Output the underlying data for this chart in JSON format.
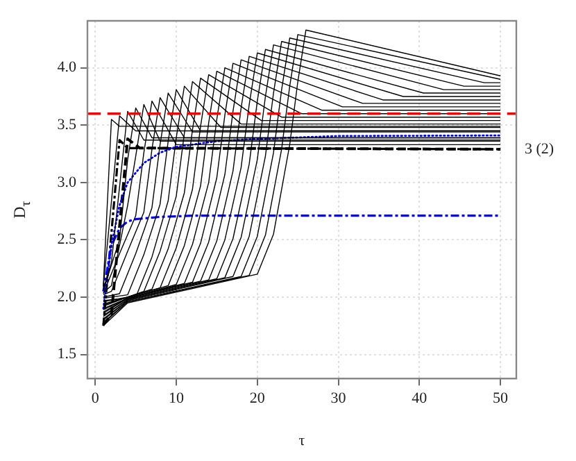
{
  "chart_data": {
    "type": "line",
    "xlabel": "τ",
    "ylabel": "D$_{τ}$",
    "xlim": [
      -0.96,
      51.96
    ],
    "ylim": [
      1.29,
      4.41
    ],
    "xticks": [
      0,
      10,
      20,
      30,
      40,
      50
    ],
    "yticks": [
      1.5,
      {
        "value": 2,
        "label": "2.0"
      },
      2.5,
      {
        "value": 3,
        "label": "3.0"
      },
      3.5,
      {
        "value": 4,
        "label": "4.0"
      }
    ],
    "grid": true,
    "marker": "none",
    "tick_labels": true,
    "annotations": [
      "3 (2)"
    ],
    "ref_lines": [
      {
        "axis": "y",
        "value": 3.6,
        "color": "#ff0000",
        "line_style": "dashed"
      }
    ],
    "series": [
      {
        "color": "#000000",
        "line_style": "solid",
        "x": [
          1,
          2,
          3,
          50
        ],
        "values": [
          2.1,
          3.55,
          3.49,
          3.49
        ]
      },
      {
        "color": "#000000",
        "line_style": "solid",
        "x": [
          1,
          3,
          5,
          50
        ],
        "values": [
          2.09,
          3.58,
          3.45,
          3.45
        ]
      },
      {
        "color": "#000000",
        "line_style": "solid",
        "x": [
          1,
          2,
          4,
          6,
          50
        ],
        "values": [
          2.07,
          2.3,
          3.62,
          3.37,
          3.37
        ]
      },
      {
        "color": "#000000",
        "line_style": "solid",
        "x": [
          1,
          3,
          4,
          5,
          7,
          50
        ],
        "values": [
          2.06,
          2.5,
          3.2,
          3.65,
          3.39,
          3.39
        ]
      },
      {
        "color": "#000000",
        "line_style": "solid",
        "x": [
          1,
          2,
          4,
          5,
          6,
          8,
          50
        ],
        "values": [
          2.04,
          2.1,
          2.8,
          3.23,
          3.68,
          3.36,
          3.36
        ]
      },
      {
        "color": "#000000",
        "line_style": "solid",
        "x": [
          1,
          3,
          5,
          6,
          7,
          10,
          50
        ],
        "values": [
          2.03,
          2.38,
          2.71,
          3.26,
          3.71,
          3.33,
          3.33
        ]
      },
      {
        "color": "#000000",
        "line_style": "solid",
        "x": [
          1,
          2,
          4,
          6,
          7,
          8,
          11,
          50
        ],
        "values": [
          2.02,
          2.05,
          2.4,
          2.74,
          3.29,
          3.74,
          3.39,
          3.39
        ]
      },
      {
        "color": "#000000",
        "line_style": "solid",
        "x": [
          1,
          3,
          5,
          7,
          8,
          9,
          12,
          50
        ],
        "values": [
          2.0,
          2.03,
          2.38,
          2.78,
          3.33,
          3.78,
          3.44,
          3.44
        ]
      },
      {
        "color": "#000000",
        "line_style": "solid",
        "x": [
          1,
          4,
          6,
          8,
          9,
          10,
          13,
          50
        ],
        "values": [
          1.99,
          2.02,
          2.37,
          2.81,
          3.36,
          3.81,
          3.45,
          3.45
        ]
      },
      {
        "color": "#000000",
        "line_style": "solid",
        "x": [
          1,
          5,
          7,
          9,
          10,
          11,
          15.5,
          50
        ],
        "values": [
          1.97,
          2.0,
          2.35,
          2.84,
          3.39,
          3.84,
          3.48,
          3.48
        ]
      },
      {
        "color": "#000000",
        "line_style": "solid",
        "x": [
          1,
          4,
          6,
          8,
          10,
          11,
          12,
          18,
          50
        ],
        "values": [
          1.96,
          2.0,
          2.05,
          2.4,
          2.88,
          3.43,
          3.88,
          3.51,
          3.51
        ]
      },
      {
        "color": "#000000",
        "line_style": "solid",
        "x": [
          1,
          4,
          7,
          9,
          11,
          12,
          13,
          20.5,
          50
        ],
        "values": [
          1.94,
          2.0,
          2.07,
          2.42,
          2.91,
          3.46,
          3.91,
          3.54,
          3.54
        ]
      },
      {
        "color": "#000000",
        "line_style": "solid",
        "x": [
          1,
          4,
          8,
          10,
          12,
          13,
          14,
          23,
          50
        ],
        "values": [
          1.93,
          2.0,
          2.08,
          2.43,
          2.94,
          3.49,
          3.94,
          3.57,
          3.57
        ]
      },
      {
        "color": "#000000",
        "line_style": "solid",
        "x": [
          1,
          4,
          9,
          11,
          13,
          14,
          15,
          25.5,
          50
        ],
        "values": [
          1.92,
          2.0,
          2.1,
          2.45,
          2.97,
          3.52,
          3.97,
          3.6,
          3.6
        ]
      },
      {
        "color": "#000000",
        "line_style": "solid",
        "x": [
          1,
          4,
          10,
          12,
          14,
          15,
          16,
          28,
          50
        ],
        "values": [
          1.9,
          1.99,
          2.11,
          2.46,
          3.0,
          3.55,
          4.0,
          3.63,
          3.63
        ]
      },
      {
        "color": "#000000",
        "line_style": "solid",
        "x": [
          1,
          4,
          11,
          13,
          15,
          16,
          17,
          30.5,
          50
        ],
        "values": [
          1.89,
          1.99,
          2.12,
          2.47,
          3.04,
          3.59,
          4.04,
          3.66,
          3.66
        ]
      },
      {
        "color": "#000000",
        "line_style": "solid",
        "x": [
          1,
          4,
          12,
          14,
          16,
          17,
          18,
          33,
          50
        ],
        "values": [
          1.87,
          1.99,
          2.13,
          2.48,
          3.07,
          3.62,
          4.07,
          3.69,
          3.69
        ]
      },
      {
        "color": "#000000",
        "line_style": "solid",
        "x": [
          1,
          4,
          13,
          15,
          17,
          18,
          19,
          35.5,
          50
        ],
        "values": [
          1.86,
          1.99,
          2.14,
          2.49,
          3.1,
          3.65,
          4.1,
          3.72,
          3.72
        ]
      },
      {
        "color": "#000000",
        "line_style": "solid",
        "x": [
          1,
          4,
          14,
          16,
          18,
          19,
          20,
          38,
          50
        ],
        "values": [
          1.84,
          1.98,
          2.15,
          2.5,
          3.13,
          3.68,
          4.13,
          3.75,
          3.75
        ]
      },
      {
        "color": "#000000",
        "line_style": "solid",
        "x": [
          1,
          4,
          15,
          17,
          19,
          20,
          21,
          40.5,
          50
        ],
        "values": [
          1.83,
          1.98,
          2.16,
          2.51,
          3.16,
          3.71,
          4.16,
          3.78,
          3.78
        ]
      },
      {
        "color": "#000000",
        "line_style": "solid",
        "x": [
          1,
          4,
          16,
          18,
          20,
          21,
          22,
          43,
          50
        ],
        "values": [
          1.81,
          1.97,
          2.17,
          2.52,
          3.2,
          3.75,
          4.2,
          3.81,
          3.81
        ]
      },
      {
        "color": "#000000",
        "line_style": "solid",
        "x": [
          1,
          4,
          17,
          19,
          21,
          22,
          23,
          45.5,
          50
        ],
        "values": [
          1.8,
          1.97,
          2.18,
          2.53,
          3.23,
          3.78,
          4.23,
          3.84,
          3.84
        ]
      },
      {
        "color": "#000000",
        "line_style": "solid",
        "x": [
          1,
          4,
          18,
          20,
          22,
          23,
          24,
          48,
          50
        ],
        "values": [
          1.78,
          1.96,
          2.18,
          2.53,
          3.26,
          3.81,
          4.26,
          3.87,
          3.87
        ]
      },
      {
        "color": "#000000",
        "line_style": "solid",
        "x": [
          1,
          4,
          19,
          21,
          23,
          24,
          25,
          50
        ],
        "values": [
          1.77,
          1.96,
          2.19,
          2.54,
          3.29,
          3.84,
          4.29,
          3.9
        ]
      },
      {
        "color": "#000000",
        "line_style": "solid",
        "x": [
          1,
          4,
          20,
          22,
          24,
          25,
          26,
          50
        ],
        "values": [
          1.75,
          1.95,
          2.2,
          2.55,
          3.33,
          3.88,
          4.33,
          3.93
        ]
      },
      {
        "color": "#0000ff",
        "line_style": "dotted",
        "x": [
          1,
          2,
          3,
          4,
          6,
          8,
          10,
          15,
          20,
          30,
          50
        ],
        "values": [
          1.9,
          2.45,
          2.8,
          3.0,
          3.17,
          3.26,
          3.31,
          3.36,
          3.38,
          3.405,
          3.41
        ]
      },
      {
        "color": "#0000ff",
        "line_style": "dashdot",
        "x": [
          1,
          2,
          3,
          4,
          5,
          8,
          12,
          50
        ],
        "values": [
          2.05,
          2.45,
          2.6,
          2.66,
          2.68,
          2.7,
          2.71,
          2.71
        ]
      },
      {
        "color": "#000000",
        "line_style": "dashdot",
        "x": [
          1,
          3,
          4,
          50
        ],
        "values": [
          1.75,
          3.37,
          3.3,
          3.29
        ]
      },
      {
        "color": "#000000",
        "line_style": "dashed",
        "x": [
          1,
          2,
          4,
          5.5,
          50
        ],
        "values": [
          1.76,
          1.85,
          3.38,
          3.3,
          3.29
        ]
      }
    ]
  }
}
